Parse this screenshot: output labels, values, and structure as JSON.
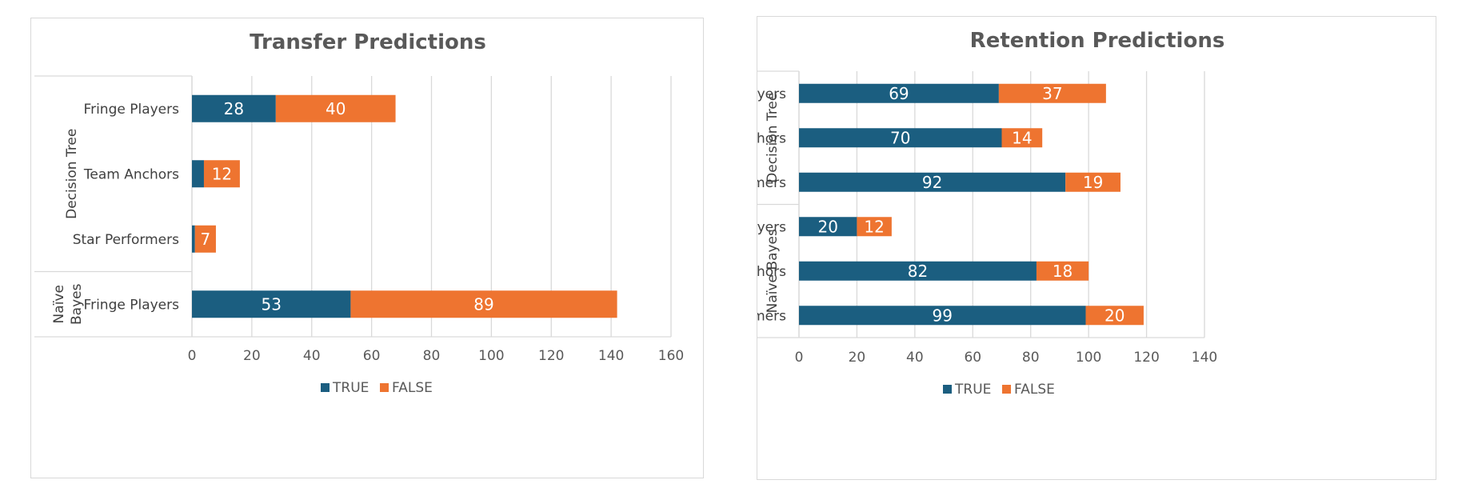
{
  "colors": {
    "true": "#1b5e80",
    "false": "#ee7430"
  },
  "chart_data": [
    {
      "type": "bar",
      "orientation": "horizontal",
      "stacked": true,
      "title": "Transfer Predictions",
      "xlim": [
        0,
        160
      ],
      "xticks": [
        "0",
        "20",
        "40",
        "60",
        "80",
        "100",
        "120",
        "140",
        "160"
      ],
      "groups": [
        {
          "name": "Decision Tree",
          "categories": [
            "Fringe Players",
            "Team Anchors",
            "Star Performers"
          ]
        },
        {
          "name": "Naïve Bayes",
          "categories": [
            "Fringe Players"
          ]
        }
      ],
      "series": [
        {
          "name": "TRUE",
          "values": [
            28,
            4,
            1,
            53
          ]
        },
        {
          "name": "FALSE",
          "values": [
            40,
            12,
            7,
            89
          ]
        }
      ],
      "data_labels": [
        [
          "28",
          "",
          "",
          "53"
        ],
        [
          "40",
          "12",
          "7",
          "89"
        ]
      ],
      "legend": "bottom"
    },
    {
      "type": "bar",
      "orientation": "horizontal",
      "stacked": true,
      "title": "Retention Predictions",
      "xlim": [
        0,
        140
      ],
      "xticks": [
        "0",
        "20",
        "40",
        "60",
        "80",
        "100",
        "120",
        "140"
      ],
      "groups": [
        {
          "name": "Decision Tree",
          "categories": [
            "Fringe Players",
            "Team Anchors",
            "Star Performers"
          ]
        },
        {
          "name": "Naïve Bayes",
          "categories": [
            "Fringe Players",
            "Team Anchors",
            "Star Performers"
          ]
        }
      ],
      "series": [
        {
          "name": "TRUE",
          "values": [
            69,
            70,
            92,
            20,
            82,
            99
          ]
        },
        {
          "name": "FALSE",
          "values": [
            37,
            14,
            19,
            12,
            18,
            20
          ]
        }
      ],
      "data_labels": [
        [
          "69",
          "70",
          "92",
          "20",
          "82",
          "99"
        ],
        [
          "37",
          "14",
          "19",
          "12",
          "18",
          "20"
        ]
      ],
      "legend": "bottom"
    }
  ]
}
